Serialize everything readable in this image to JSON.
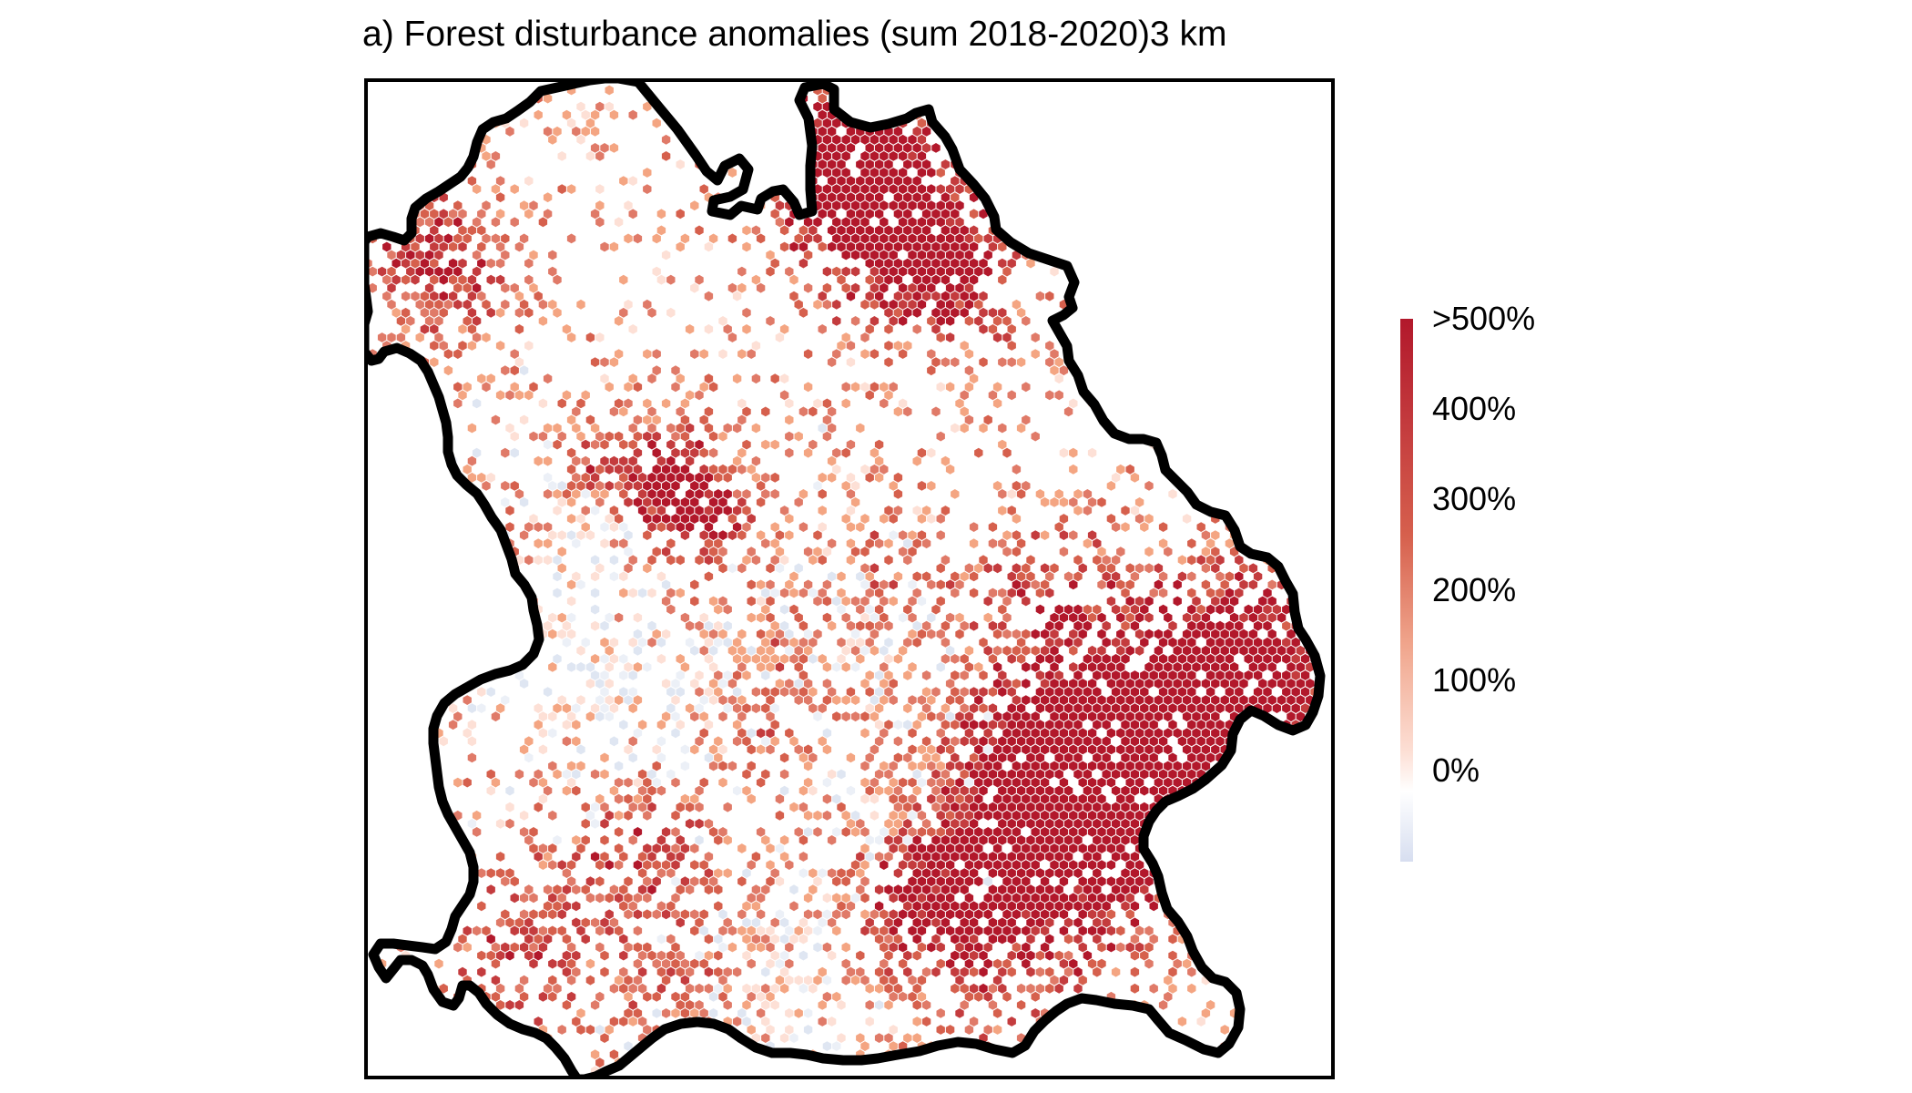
{
  "title": "a) Forest disturbance anomalies (sum 2018-2020)3 km",
  "legend": {
    "labels": [
      ">500%",
      "400%",
      "300%",
      "200%",
      "100%",
      "0%"
    ],
    "colors": {
      "max": "#b2182b",
      "high": "#d6604d",
      "mid": "#f4a582",
      "low": "#fddbc7",
      "zero": "#ffffff",
      "negative": "#d1e5f0",
      "min": "#dfe6f2"
    }
  },
  "map": {
    "region_outline_color": "#000000",
    "frame_color": "#000000"
  }
}
